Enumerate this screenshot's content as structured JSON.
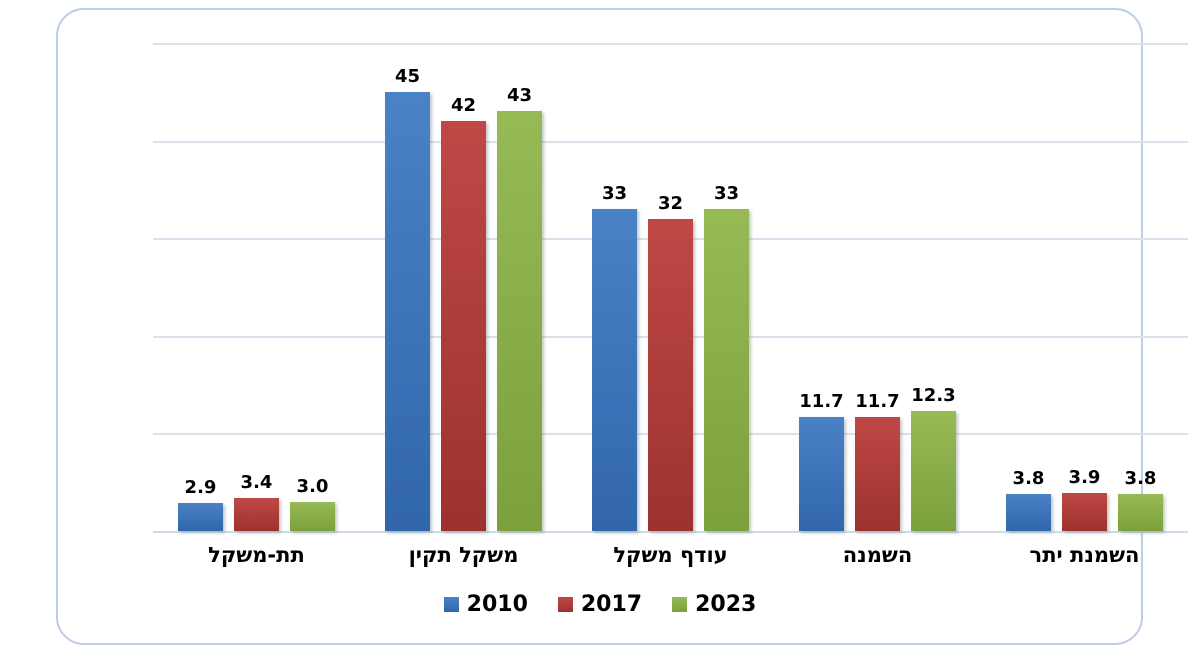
{
  "chart_data": {
    "type": "bar",
    "title": "",
    "xlabel": "",
    "ylabel": "",
    "ylim": [
      0,
      50
    ],
    "gridline_step": 10,
    "grid": "horizontal",
    "legend_position": "bottom",
    "categories": [
      "תת-משקל",
      "משקל תקין",
      "עודף משקל",
      "השמנה",
      "השמנת יתר"
    ],
    "series": [
      {
        "name": "2010",
        "color": "#3c78c1",
        "gradient_top": "#4a82c6",
        "gradient_bottom": "#3166ab",
        "values": [
          2.9,
          45,
          33,
          11.7,
          3.8
        ],
        "labels": [
          "2.9",
          "45",
          "33",
          "11.7",
          "3.8"
        ]
      },
      {
        "name": "2017",
        "color": "#b23a37",
        "gradient_top": "#bf4845",
        "gradient_bottom": "#9c322f",
        "values": [
          3.4,
          42,
          32,
          11.7,
          3.9
        ],
        "labels": [
          "3.4",
          "42",
          "32",
          "11.7",
          "3.9"
        ]
      },
      {
        "name": "2023",
        "color": "#89af48",
        "gradient_top": "#97ba55",
        "gradient_bottom": "#7ba03c",
        "values": [
          3.0,
          43,
          33,
          12.3,
          3.8
        ],
        "labels": [
          "3.0",
          "43",
          "33",
          "12.3",
          "3.8"
        ]
      }
    ],
    "colors": {
      "gridline": "#d9e2ec",
      "frame_border": "#bdcde6",
      "label_text": "#000000"
    }
  }
}
